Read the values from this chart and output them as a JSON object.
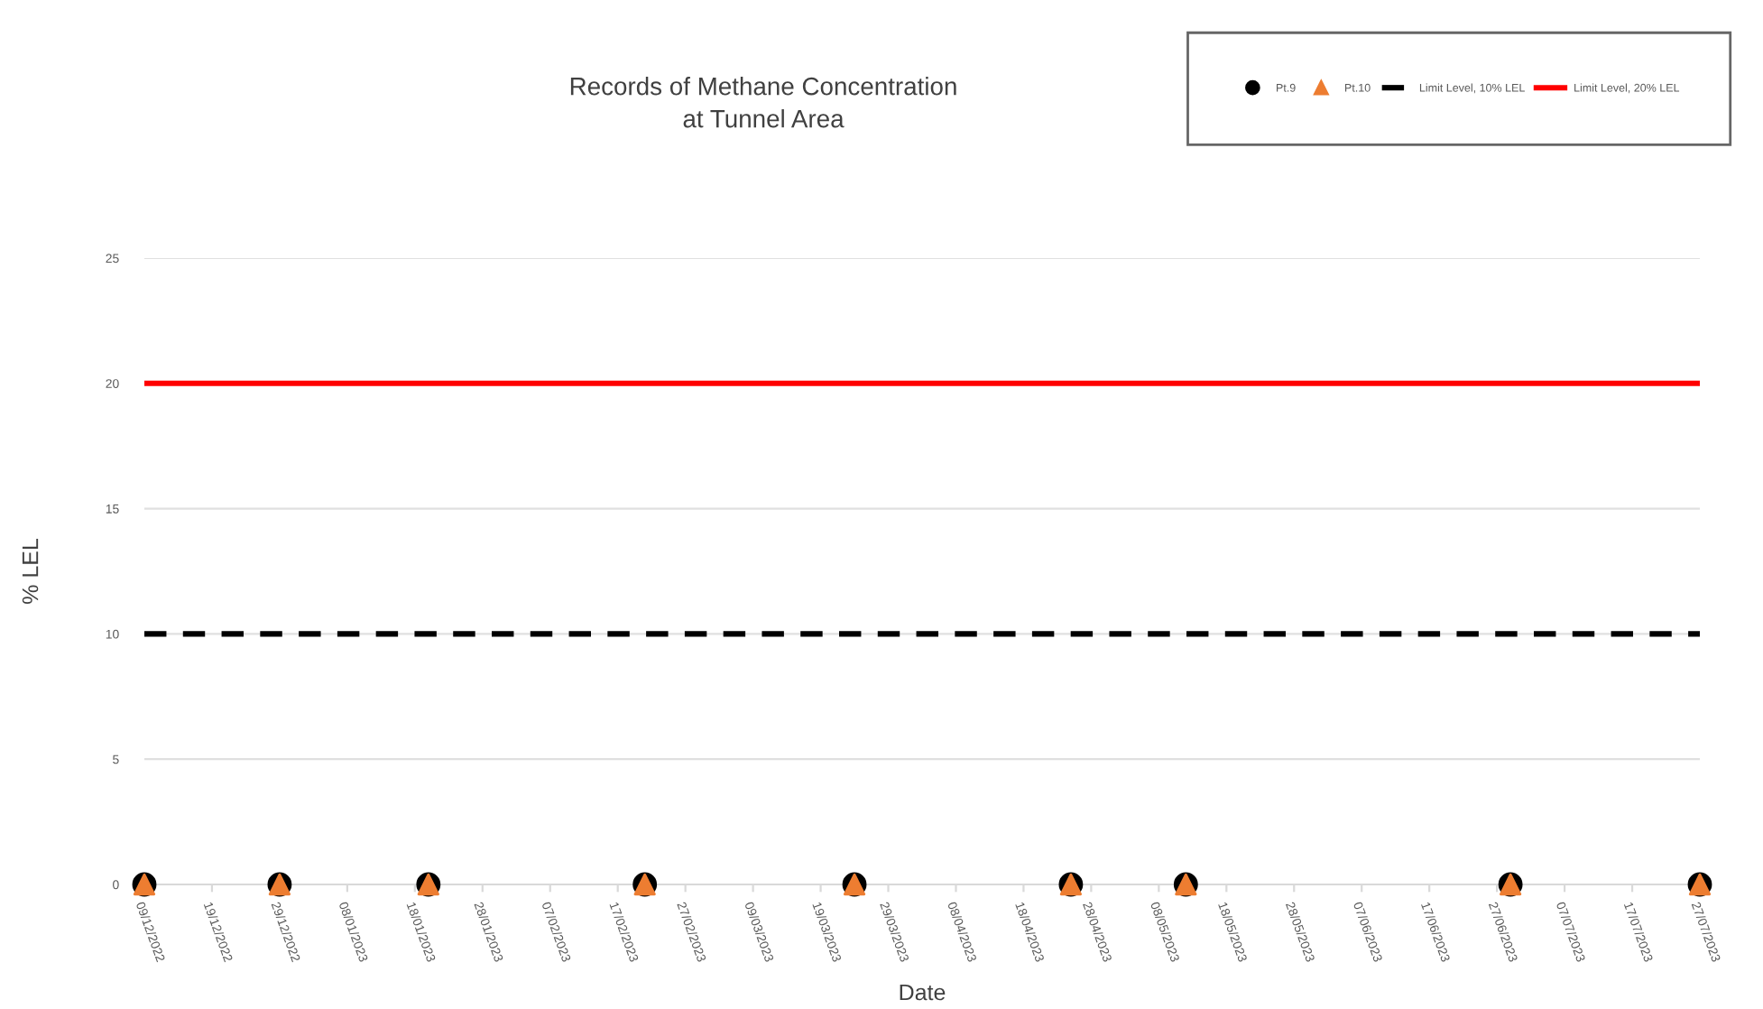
{
  "chart_data": {
    "type": "scatter",
    "title": "Records of Methane Concentration\nat Tunnel Area",
    "xlabel": "Date",
    "ylabel": "% LEL",
    "x": [
      "2022-12-09",
      "2022-12-29",
      "2023-01-20",
      "2023-02-21",
      "2023-03-24",
      "2023-04-25",
      "2023-05-12",
      "2023-06-29",
      "2023-07-27"
    ],
    "series": [
      {
        "name": "Pt.9",
        "color": "#000000",
        "marker": "circle",
        "values": [
          0,
          0,
          0,
          0,
          0,
          0,
          0,
          0,
          0
        ]
      },
      {
        "name": "Pt.10",
        "color": "#ed7d31",
        "marker": "triangle",
        "values": [
          0,
          0,
          0,
          0,
          0,
          0,
          0,
          0,
          0
        ]
      }
    ],
    "ref_lines": [
      {
        "axis": "y",
        "value": 10,
        "label": "Limit Level, 10% LEL",
        "color": "#000000",
        "line_style": "dashed"
      },
      {
        "axis": "y",
        "value": 20,
        "label": "Limit Level, 20% LEL",
        "color": "#ff0000",
        "line_style": "solid"
      }
    ],
    "xlim": [
      "2022-12-09",
      "2023-07-27"
    ],
    "xticks": [
      {
        "value": "2022-12-09",
        "label": "09/12/2022"
      },
      {
        "value": "2022-12-19",
        "label": "19/12/2022"
      },
      {
        "value": "2022-12-29",
        "label": "29/12/2022"
      },
      {
        "value": "2023-01-08",
        "label": "08/01/2023"
      },
      {
        "value": "2023-01-18",
        "label": "18/01/2023"
      },
      {
        "value": "2023-01-28",
        "label": "28/01/2023"
      },
      {
        "value": "2023-02-07",
        "label": "07/02/2023"
      },
      {
        "value": "2023-02-17",
        "label": "17/02/2023"
      },
      {
        "value": "2023-02-27",
        "label": "27/02/2023"
      },
      {
        "value": "2023-03-09",
        "label": "09/03/2023"
      },
      {
        "value": "2023-03-19",
        "label": "19/03/2023"
      },
      {
        "value": "2023-03-29",
        "label": "29/03/2023"
      },
      {
        "value": "2023-04-08",
        "label": "08/04/2023"
      },
      {
        "value": "2023-04-18",
        "label": "18/04/2023"
      },
      {
        "value": "2023-04-28",
        "label": "28/04/2023"
      },
      {
        "value": "2023-05-08",
        "label": "08/05/2023"
      },
      {
        "value": "2023-05-18",
        "label": "18/05/2023"
      },
      {
        "value": "2023-05-28",
        "label": "28/05/2023"
      },
      {
        "value": "2023-06-07",
        "label": "07/06/2023"
      },
      {
        "value": "2023-06-17",
        "label": "17/06/2023"
      },
      {
        "value": "2023-06-27",
        "label": "27/06/2023"
      },
      {
        "value": "2023-07-07",
        "label": "07/07/2023"
      },
      {
        "value": "2023-07-17",
        "label": "17/07/2023"
      },
      {
        "value": "2023-07-27",
        "label": "27/07/2023"
      }
    ],
    "ylim": [
      0,
      25
    ],
    "yticks": [
      0,
      5,
      10,
      15,
      20,
      25
    ],
    "grid": "y",
    "legend": "top right"
  }
}
